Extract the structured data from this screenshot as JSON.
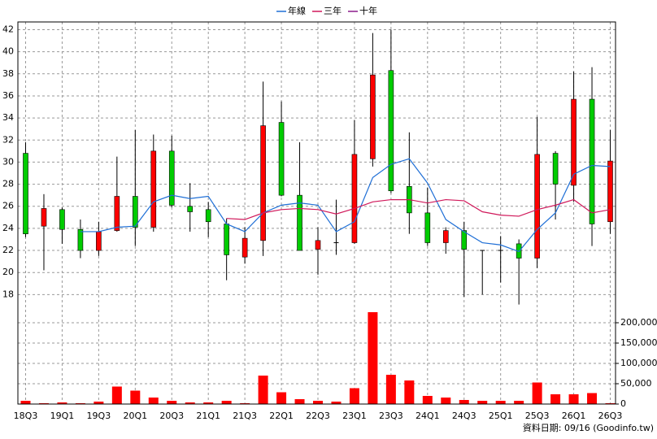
{
  "chart_data": {
    "type": "candlestick",
    "categories": [
      "18Q3",
      null,
      "19Q1",
      null,
      "19Q3",
      null,
      "20Q1",
      null,
      "20Q3",
      null,
      "21Q1",
      null,
      "21Q3",
      null,
      "22Q1",
      null,
      "22Q3",
      null,
      "23Q1",
      null,
      "23Q3",
      null,
      "24Q1",
      null,
      "24Q3",
      null,
      "25Q1",
      null,
      "25Q3",
      null,
      "26Q1",
      null,
      "26Q3"
    ],
    "open": [
      30.8,
      24.2,
      25.7,
      23.9,
      22.0,
      23.8,
      26.9,
      24.1,
      31.0,
      26.0,
      25.7,
      24.4,
      21.4,
      22.9,
      33.6,
      27.0,
      22.1,
      22.7,
      22.7,
      30.3,
      38.3,
      27.8,
      25.4,
      22.7,
      23.8,
      22.0,
      22.0,
      22.6,
      21.3,
      30.8,
      27.9,
      35.7,
      24.6
    ],
    "high": [
      31.8,
      27.1,
      25.9,
      24.8,
      24.6,
      30.5,
      32.9,
      32.5,
      32.4,
      28.1,
      26.4,
      24.9,
      24.1,
      37.3,
      35.5,
      31.8,
      24.1,
      26.6,
      33.8,
      41.7,
      42.0,
      32.7,
      27.7,
      24.1,
      24.6,
      22.0,
      23.3,
      23.0,
      34.1,
      31.0,
      38.2,
      38.6,
      32.9
    ],
    "low": [
      23.2,
      20.2,
      22.6,
      21.3,
      21.5,
      23.7,
      22.4,
      23.7,
      25.9,
      23.7,
      23.2,
      19.3,
      20.8,
      21.5,
      26.9,
      22.0,
      19.8,
      21.6,
      22.6,
      29.6,
      27.2,
      23.5,
      22.4,
      21.7,
      17.8,
      18.0,
      19.1,
      17.1,
      20.4,
      24.8,
      26.4,
      22.4,
      23.5
    ],
    "close": [
      23.5,
      25.8,
      23.9,
      22.0,
      23.7,
      26.9,
      24.1,
      31.0,
      26.1,
      25.5,
      24.6,
      21.6,
      23.1,
      33.3,
      27.0,
      22.0,
      22.9,
      22.7,
      30.7,
      37.9,
      27.4,
      25.4,
      22.7,
      23.8,
      22.1,
      22.0,
      22.0,
      21.3,
      30.7,
      28.0,
      35.7,
      24.4,
      30.1
    ],
    "up_color": "#ff0000",
    "down_color": "#00cc00",
    "series": [
      {
        "name": "年線",
        "color": "#1f6fd6",
        "values": [
          null,
          null,
          null,
          23.7,
          23.7,
          24.1,
          24.2,
          26.4,
          27.0,
          26.7,
          26.9,
          24.4,
          23.7,
          25.4,
          26.1,
          26.3,
          26.1,
          23.7,
          24.6,
          28.6,
          29.8,
          30.3,
          28.1,
          24.8,
          23.7,
          22.7,
          22.5,
          21.9,
          23.9,
          25.4,
          28.9,
          29.7,
          29.6
        ]
      },
      {
        "name": "三年",
        "color": "#d0185a",
        "values": [
          null,
          null,
          null,
          null,
          null,
          null,
          null,
          null,
          null,
          null,
          null,
          24.9,
          24.8,
          25.4,
          25.7,
          25.8,
          25.7,
          25.3,
          25.8,
          26.4,
          26.6,
          26.6,
          26.3,
          26.6,
          26.5,
          25.5,
          25.2,
          25.1,
          25.7,
          26.1,
          26.6,
          25.4,
          25.7
        ]
      },
      {
        "name": "十年",
        "color": "#8b1a8b",
        "values": [
          null,
          null,
          null,
          null,
          null,
          null,
          null,
          null,
          null,
          null,
          null,
          null,
          null,
          null,
          null,
          null,
          null,
          null,
          null,
          null,
          null,
          null,
          null,
          null,
          null,
          null,
          null,
          null,
          null,
          null,
          null,
          null,
          null
        ]
      }
    ],
    "ylim": [
      16.7,
      42.7
    ],
    "yticks": [
      18,
      20,
      22,
      24,
      26,
      28,
      30,
      32,
      34,
      36,
      38,
      40,
      42
    ],
    "grid": true,
    "volume": {
      "color": "#ff0000",
      "values": [
        8000,
        2000,
        4000,
        2000,
        6000,
        43000,
        33000,
        16000,
        8000,
        4000,
        4000,
        8000,
        2000,
        70000,
        29000,
        12000,
        8000,
        6000,
        39000,
        226000,
        72000,
        58000,
        20000,
        16000,
        10000,
        8000,
        8000,
        8000,
        53000,
        24000,
        24000,
        27000,
        2000
      ],
      "ylim": [
        0,
        228000
      ],
      "yticks": [
        0,
        {
          "value": 50000,
          "label": "50,000"
        },
        {
          "value": 100000,
          "label": "100,000"
        },
        {
          "value": 150000,
          "label": "150,000"
        },
        {
          "value": 200000,
          "label": "200,000"
        }
      ]
    },
    "source": "資料日期: 09/16 (Goodinfo.tw)"
  }
}
